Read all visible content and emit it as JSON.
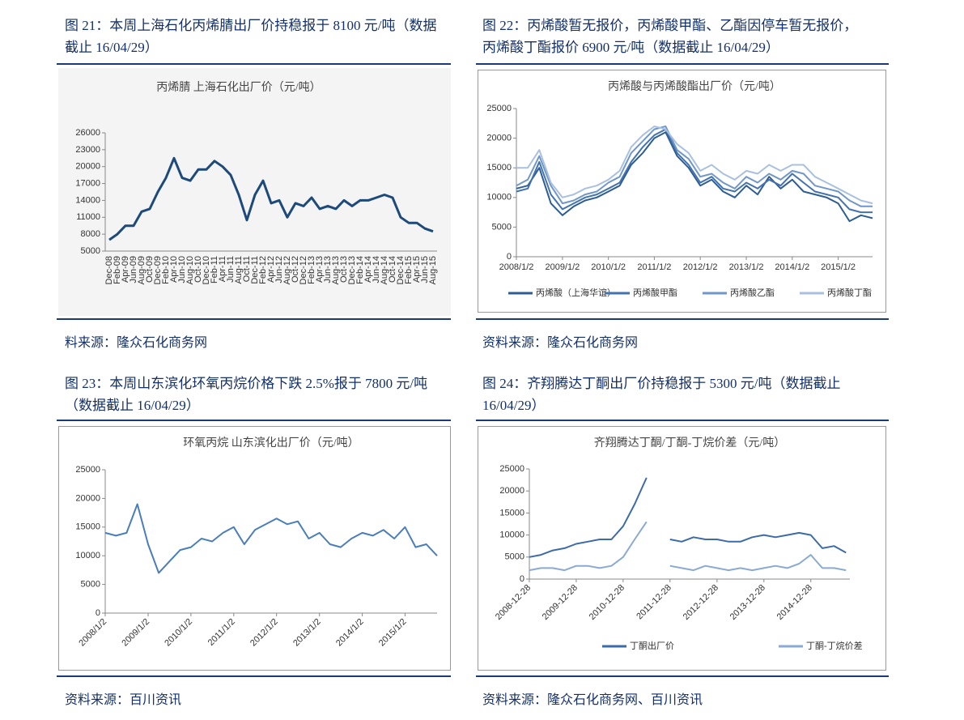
{
  "figures": [
    {
      "caption": "图 21：本周上海石化丙烯腈出厂价持稳报于 8100 元/吨（数据截止 16/04/29）",
      "source": "料来源：隆众石化商务网"
    },
    {
      "caption": "图 22：丙烯酸暂无报价，丙烯酸甲酯、乙酯因停车暂无报价，丙烯酸丁酯报价 6900 元/吨（数据截止 16/04/29）",
      "source": "资料来源：隆众石化商务网"
    },
    {
      "caption": "图 23：本周山东滨化环氧丙烷价格下跌 2.5%报于 7800 元/吨（数据截止 16/04/29）",
      "source": "资料来源：百川资讯"
    },
    {
      "caption": "图 24：齐翔腾达丁酮出厂价持稳报于 5300 元/吨（数据截止 16/04/29）",
      "source": "资料来源：隆众石化商务网、百川资讯"
    }
  ],
  "chart_data": [
    {
      "type": "line",
      "title": "丙烯腈 上海石化出厂价（元/吨）",
      "categories": [
        "Dec-08",
        "Feb-09",
        "Apr-09",
        "Jun-09",
        "Aug-09",
        "Oct-09",
        "Dec-09",
        "Feb-10",
        "Apr-10",
        "Jun-10",
        "Aug-10",
        "Oct-10",
        "Dec-10",
        "Feb-11",
        "Apr-11",
        "Jun-11",
        "Aug-11",
        "Oct-11",
        "Dec-11",
        "Feb-12",
        "Apr-12",
        "Jun-12",
        "Aug-12",
        "Oct-12",
        "Dec-12",
        "Feb-13",
        "Apr-13",
        "Jun-13",
        "Aug-13",
        "Oct-13",
        "Dec-13",
        "Feb-14",
        "Apr-14",
        "Jun-14",
        "Aug-14",
        "Oct-14",
        "Dec-14",
        "Feb-15",
        "Apr-15",
        "Jun-15",
        "Aug-15"
      ],
      "values": [
        7000,
        8000,
        9500,
        9500,
        12000,
        12500,
        15500,
        18000,
        21500,
        18000,
        17500,
        19500,
        19500,
        21000,
        20000,
        18500,
        15000,
        10500,
        15000,
        17500,
        13500,
        14000,
        11000,
        13500,
        13000,
        14500,
        12500,
        13000,
        12500,
        14000,
        13000,
        14000,
        14000,
        14500,
        15000,
        14500,
        11000,
        10000,
        10000,
        9000,
        8500
      ],
      "color": "#1d4a7a",
      "ylim": [
        5000,
        26000
      ],
      "yticks": [
        5000,
        8000,
        11000,
        14000,
        17000,
        20000,
        23000,
        26000
      ]
    },
    {
      "type": "line",
      "title": "丙烯酸与丙烯酸酯出厂价（元/吨）",
      "x": [
        "2008/1/2",
        "2008/4/2",
        "2008/7/2",
        "2008/10/2",
        "2009/1/2",
        "2009/4/2",
        "2009/7/2",
        "2009/10/2",
        "2010/1/2",
        "2010/4/2",
        "2010/7/2",
        "2010/10/2",
        "2011/1/2",
        "2011/4/2",
        "2011/7/2",
        "2011/10/2",
        "2012/1/2",
        "2012/4/2",
        "2012/7/2",
        "2012/10/2",
        "2013/1/2",
        "2013/4/2",
        "2013/7/2",
        "2013/10/2",
        "2014/1/2",
        "2014/4/2",
        "2014/7/2",
        "2014/10/2",
        "2015/1/2",
        "2015/4/2",
        "2015/7/2",
        "2015/10/2"
      ],
      "xlim": [
        "2008/1/2",
        "2015/10/2"
      ],
      "xticks": [
        "2008/1/2",
        "2009/1/2",
        "2010/1/2",
        "2011/1/2",
        "2012/1/2",
        "2013/1/2",
        "2014/1/2",
        "2015/1/2"
      ],
      "series": [
        {
          "name": "丙烯酸（上海华谊）",
          "color": "#2e5d93",
          "values": [
            11500,
            12000,
            15000,
            9000,
            7000,
            8500,
            9500,
            10000,
            11000,
            12000,
            15500,
            17500,
            20000,
            21000,
            17000,
            15000,
            12000,
            13000,
            11000,
            10000,
            12000,
            10500,
            13500,
            11500,
            13000,
            11000,
            10500,
            10000,
            9000,
            6000,
            7000,
            6500
          ]
        },
        {
          "name": "丙烯酸甲酯",
          "color": "#4272b0",
          "values": [
            11000,
            11500,
            16000,
            10500,
            8000,
            9000,
            10000,
            10500,
            11500,
            12500,
            16000,
            18500,
            20500,
            21500,
            17500,
            15500,
            12500,
            13500,
            11500,
            11000,
            12500,
            11500,
            13000,
            12000,
            14000,
            12500,
            11000,
            10500,
            10000,
            8000,
            7500,
            7500
          ]
        },
        {
          "name": "丙烯酸乙酯",
          "color": "#7097c9",
          "values": [
            12000,
            13000,
            17000,
            12000,
            9000,
            9500,
            10500,
            11000,
            12500,
            13500,
            17500,
            19500,
            21500,
            22000,
            18000,
            16500,
            13500,
            14000,
            12500,
            11500,
            13500,
            12500,
            14000,
            13000,
            14500,
            14000,
            12000,
            11500,
            11000,
            9500,
            8500,
            8500
          ]
        },
        {
          "name": "丙烯酸丁酯",
          "color": "#a9c0e0",
          "values": [
            15000,
            15000,
            18000,
            12500,
            10000,
            10500,
            11500,
            12000,
            13000,
            14500,
            18500,
            20500,
            22000,
            21500,
            19000,
            17500,
            14500,
            15500,
            14000,
            13000,
            14500,
            14000,
            15500,
            14500,
            15500,
            15500,
            13500,
            12500,
            11500,
            10500,
            9500,
            9000
          ]
        }
      ],
      "ylim": [
        0,
        25000
      ],
      "yticks": [
        0,
        5000,
        10000,
        15000,
        20000,
        25000
      ],
      "legend": "bottom"
    },
    {
      "type": "line",
      "title": "环氧丙烷 山东滨化出厂价（元/吨）",
      "x": [
        "2008/1/2",
        "2008/4/2",
        "2008/7/2",
        "2008/10/2",
        "2009/1/2",
        "2009/4/2",
        "2009/7/2",
        "2009/10/2",
        "2010/1/2",
        "2010/4/2",
        "2010/7/2",
        "2010/10/2",
        "2011/1/2",
        "2011/4/2",
        "2011/7/2",
        "2011/10/2",
        "2012/1/2",
        "2012/4/2",
        "2012/7/2",
        "2012/10/2",
        "2013/1/2",
        "2013/4/2",
        "2013/7/2",
        "2013/10/2",
        "2014/1/2",
        "2014/4/2",
        "2014/7/2",
        "2014/10/2",
        "2015/1/2",
        "2015/4/2",
        "2015/7/2",
        "2015/10/2"
      ],
      "xlim": [
        "2008/1/2",
        "2015/10/2"
      ],
      "xticks": [
        "2008/1/2",
        "2009/1/2",
        "2010/1/2",
        "2011/1/2",
        "2012/1/2",
        "2013/1/2",
        "2014/1/2",
        "2015/1/2"
      ],
      "values": [
        14000,
        13500,
        14000,
        19000,
        12000,
        7000,
        9000,
        11000,
        11500,
        13000,
        12500,
        14000,
        15000,
        12000,
        14500,
        15500,
        16500,
        15500,
        16000,
        13000,
        14000,
        12000,
        11500,
        13000,
        14000,
        13500,
        14500,
        13000,
        15000,
        11500,
        12000,
        10000
      ],
      "color": "#4a7ebb",
      "ylim": [
        0,
        25000
      ],
      "yticks": [
        0,
        5000,
        10000,
        15000,
        20000,
        25000
      ]
    },
    {
      "type": "line",
      "title": "齐翔腾达丁酮/丁酮-丁烷价差（元/吨）",
      "x": [
        "2008-12-28",
        "2009-03-28",
        "2009-06-28",
        "2009-09-28",
        "2009-12-28",
        "2010-03-28",
        "2010-06-28",
        "2010-09-28",
        "2010-12-28",
        "2011-03-28",
        "2011-06-28",
        "2011-09-28",
        "2011-12-28",
        "2012-03-28",
        "2012-06-28",
        "2012-09-28",
        "2012-12-28",
        "2013-03-28",
        "2013-06-28",
        "2013-09-28",
        "2013-12-28",
        "2014-03-28",
        "2014-06-28",
        "2014-09-28",
        "2014-12-28",
        "2015-03-28",
        "2015-06-28",
        "2015-09-28"
      ],
      "xlim": [
        "2008-12-28",
        "2015-10-28"
      ],
      "xticks": [
        "2008-12-28",
        "2009-12-28",
        "2010-12-28",
        "2011-12-28",
        "2012-12-28",
        "2013-12-28",
        "2014-12-28"
      ],
      "series": [
        {
          "name": "丁酮出厂价",
          "color": "#3d6aa8",
          "values": [
            5000,
            5500,
            6500,
            7000,
            8000,
            8500,
            9000,
            9000,
            12000,
            17000,
            23000,
            null,
            9000,
            8500,
            9500,
            9000,
            9000,
            8500,
            8500,
            9500,
            10000,
            9500,
            10000,
            10500,
            10000,
            7000,
            7500,
            6000
          ]
        },
        {
          "name": "丁酮-丁烷价差",
          "color": "#8aaad4",
          "values": [
            2000,
            2500,
            2500,
            2000,
            3000,
            3000,
            2500,
            3000,
            5000,
            9000,
            13000,
            null,
            3000,
            2500,
            2000,
            3000,
            2500,
            2000,
            2500,
            2000,
            2500,
            3000,
            2500,
            3500,
            5500,
            2500,
            2500,
            2000
          ]
        }
      ],
      "ylim": [
        0,
        25000
      ],
      "yticks": [
        0,
        5000,
        10000,
        15000,
        20000,
        25000
      ],
      "legend": "bottom"
    }
  ]
}
